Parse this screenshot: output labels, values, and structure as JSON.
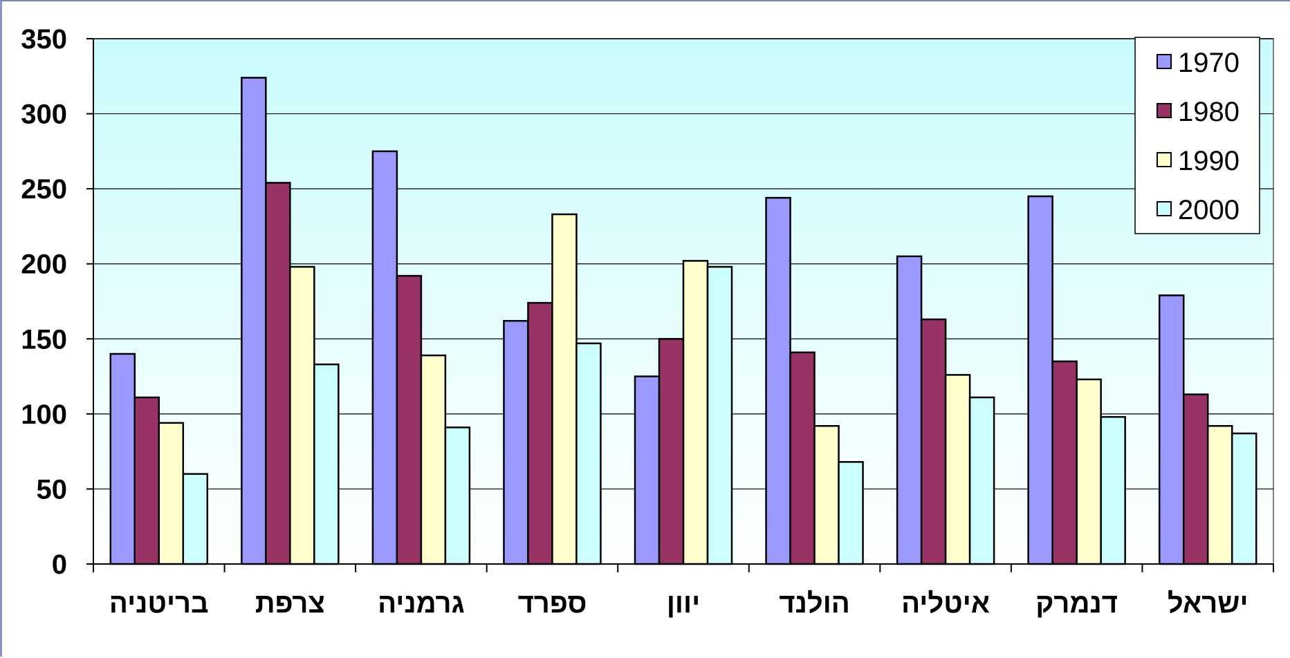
{
  "chart_data": {
    "type": "bar",
    "title": "",
    "xlabel": "",
    "ylabel": "",
    "ylim": [
      0,
      350
    ],
    "yticks": [
      0,
      50,
      100,
      150,
      200,
      250,
      300,
      350
    ],
    "grid": true,
    "legend_position": "top-right",
    "categories": [
      "בריטניה",
      "צרפת",
      "גרמניה",
      "ספרד",
      "יוון",
      "הולנד",
      "איטליה",
      "דנמרק",
      "ישראל"
    ],
    "series": [
      {
        "name": "1970",
        "color": "#9999ff",
        "values": [
          140,
          324,
          275,
          162,
          125,
          244,
          205,
          245,
          179
        ]
      },
      {
        "name": "1980",
        "color": "#993366",
        "values": [
          111,
          254,
          192,
          174,
          150,
          141,
          163,
          135,
          113
        ]
      },
      {
        "name": "1990",
        "color": "#ffffcc",
        "values": [
          94,
          198,
          139,
          233,
          202,
          92,
          126,
          123,
          92
        ]
      },
      {
        "name": "2000",
        "color": "#ccffff",
        "values": [
          60,
          133,
          91,
          147,
          198,
          68,
          111,
          98,
          87
        ]
      }
    ]
  },
  "colors": {
    "plot_bg_top": "#c9fbfb",
    "plot_bg_bottom": "#ffffff",
    "bar_stroke": "#000000"
  }
}
